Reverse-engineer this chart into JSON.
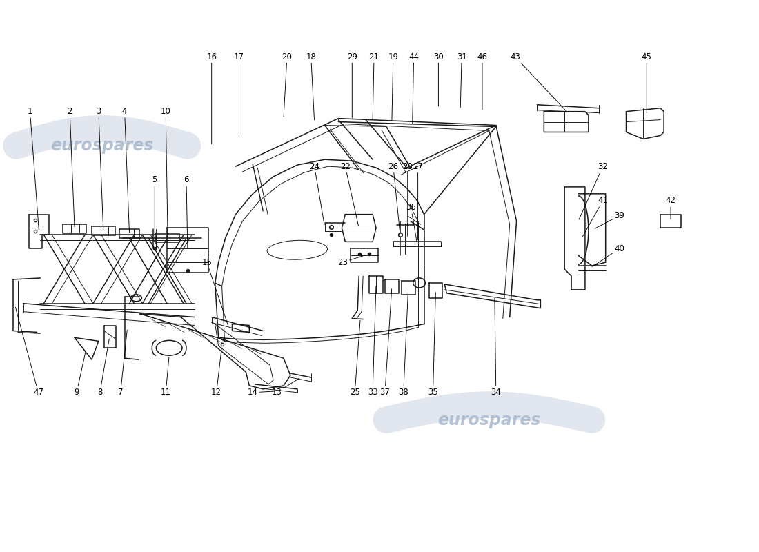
{
  "background_color": "#ffffff",
  "line_color": "#1a1a1a",
  "label_color": "#000000",
  "label_fontsize": 8.5,
  "watermark_color": "#c5cfe0",
  "watermark_fontsize": 17
}
